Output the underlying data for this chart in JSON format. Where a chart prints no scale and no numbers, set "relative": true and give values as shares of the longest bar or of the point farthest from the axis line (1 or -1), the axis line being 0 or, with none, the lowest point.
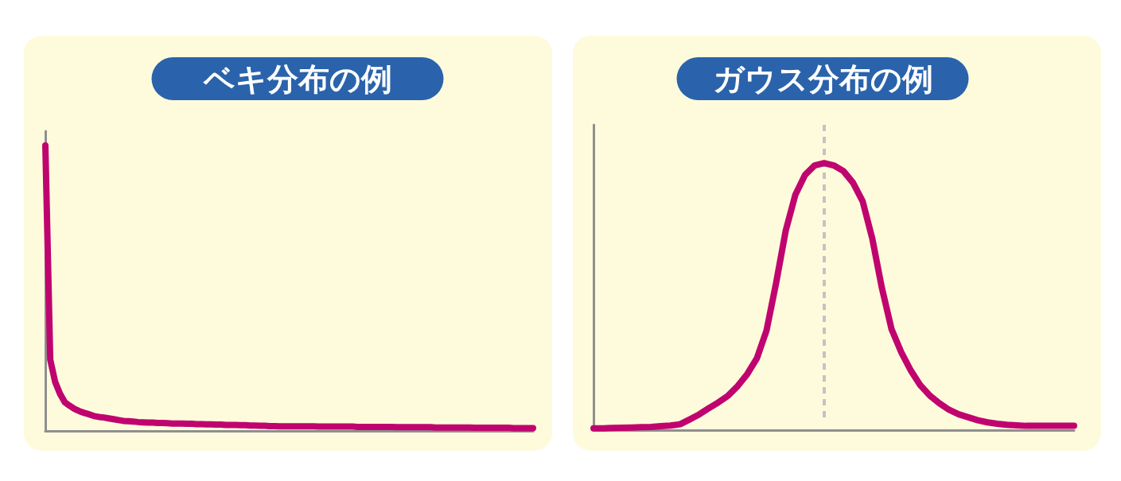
{
  "chart_data": [
    {
      "type": "line",
      "title": "ベキ分布の例",
      "relative": true,
      "color": "#c0046f",
      "categories": [
        null,
        null,
        null,
        null,
        null,
        null,
        null,
        null,
        null,
        null,
        null,
        null,
        null,
        null,
        null,
        null,
        null,
        null,
        null,
        null,
        null,
        null,
        null,
        null,
        null,
        null,
        null,
        null,
        null,
        null,
        null,
        null,
        null,
        null,
        null,
        null,
        null,
        null,
        null,
        null,
        null,
        null,
        null,
        null,
        null,
        null,
        null,
        null,
        null,
        null,
        null,
        null,
        null,
        null,
        null,
        null,
        null,
        null,
        null,
        null,
        null,
        null,
        null,
        null,
        null,
        null,
        null,
        null,
        null,
        null,
        null,
        null,
        null,
        null,
        null,
        null,
        null,
        null,
        null,
        null,
        null,
        null,
        null,
        null,
        null,
        null,
        null,
        null,
        null,
        null,
        null,
        null,
        null,
        null,
        null,
        null,
        null,
        null,
        null,
        null,
        null
      ],
      "values": [
        1,
        0.25,
        0.172,
        0.13,
        0.1,
        0.088,
        0.077,
        0.069,
        0.063,
        0.058,
        0.052,
        0.049,
        0.047,
        0.044,
        0.041,
        0.038,
        0.035,
        0.034,
        0.033,
        0.031,
        0.03,
        0.029,
        0.029,
        0.028,
        0.028,
        0.027,
        0.026,
        0.026,
        0.026,
        0.025,
        0.025,
        0.024,
        0.024,
        0.023,
        0.023,
        0.022,
        0.022,
        0.021,
        0.021,
        0.021,
        0.02,
        0.02,
        0.019,
        0.019,
        0.018,
        0.018,
        0.017,
        0.017,
        0.016,
        0.016,
        0.016,
        0.016,
        0.016,
        0.016,
        0.016,
        0.016,
        0.015,
        0.015,
        0.015,
        0.015,
        0.015,
        0.015,
        0.015,
        0.015,
        0.014,
        0.014,
        0.014,
        0.014,
        0.014,
        0.014,
        0.014,
        0.014,
        0.013,
        0.013,
        0.013,
        0.013,
        0.013,
        0.013,
        0.013,
        0.013,
        0.012,
        0.012,
        0.012,
        0.012,
        0.012,
        0.012,
        0.012,
        0.012,
        0.011,
        0.011,
        0.011,
        0.011,
        0.011,
        0.011,
        0.011,
        0.011,
        0.01,
        0.01,
        0.01,
        0.01,
        0.01
      ]
    },
    {
      "type": "line",
      "title": "ガウス分布の例",
      "relative": true,
      "color": "#c0046f",
      "categories": [
        null,
        null,
        null,
        null,
        null,
        null,
        null,
        null,
        null,
        null,
        null,
        null,
        null,
        null,
        null,
        null,
        null,
        null,
        null,
        null,
        null,
        null,
        null,
        null,
        null,
        null,
        null,
        null,
        null,
        null,
        null,
        null,
        null,
        null,
        null,
        null,
        null,
        null,
        null,
        null,
        null,
        null,
        null,
        null,
        null,
        null,
        null,
        null,
        null,
        null,
        null
      ],
      "values": [
        0.007,
        0.007,
        0.008,
        0.009,
        0.01,
        0.011,
        0.012,
        0.015,
        0.017,
        0.022,
        0.04,
        0.059,
        0.082,
        0.104,
        0.129,
        0.165,
        0.21,
        0.269,
        0.373,
        0.551,
        0.747,
        0.881,
        0.955,
        0.991,
        1,
        0.991,
        0.97,
        0.926,
        0.857,
        0.718,
        0.533,
        0.379,
        0.293,
        0.224,
        0.168,
        0.129,
        0.1,
        0.076,
        0.059,
        0.048,
        0.037,
        0.029,
        0.024,
        0.02,
        0.018,
        0.016,
        0.016,
        0.016,
        0.016,
        0.016,
        0.016
      ]
    }
  ]
}
